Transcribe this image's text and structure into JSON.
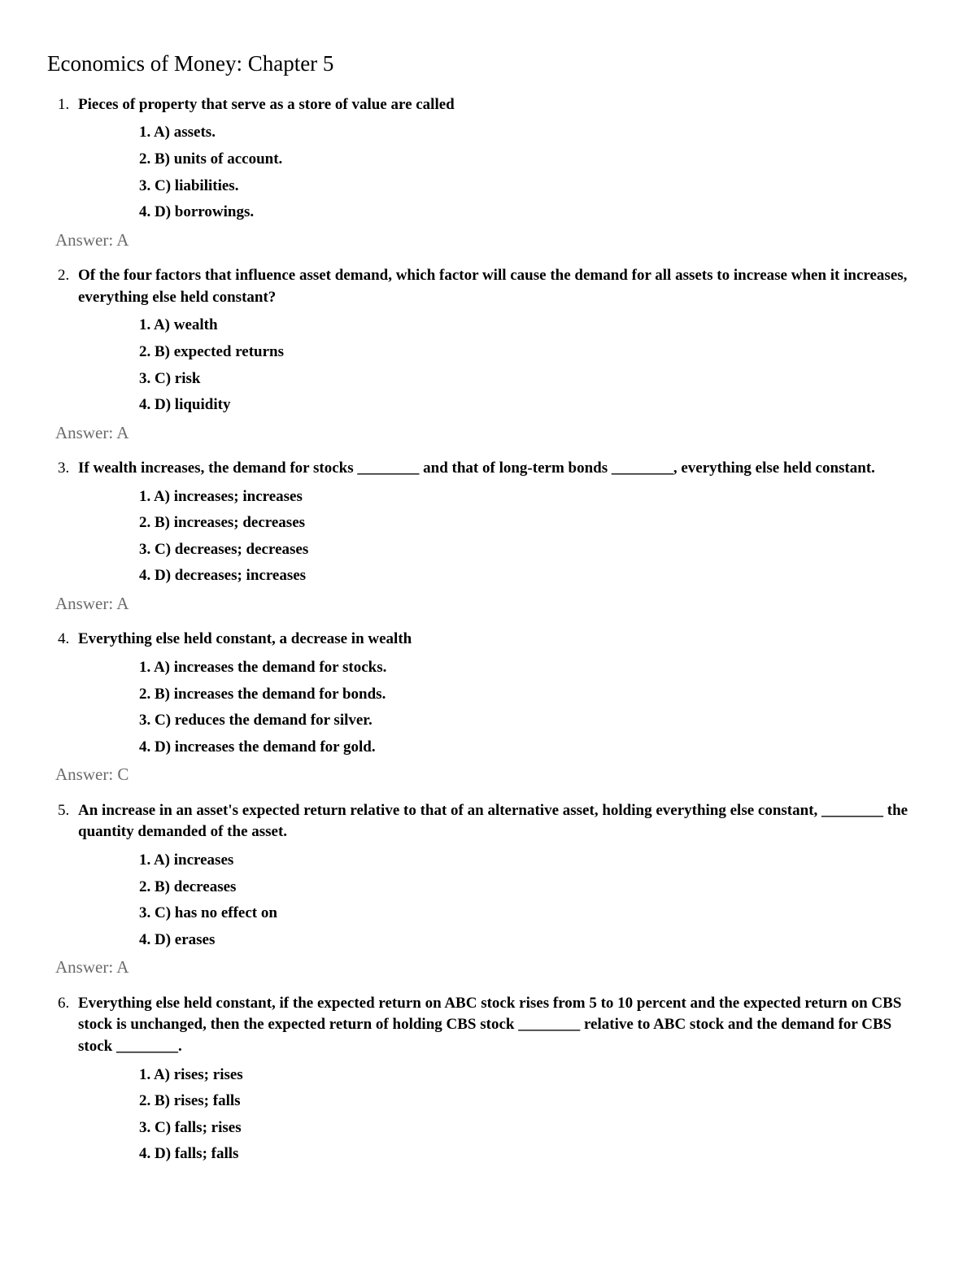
{
  "title": "Economics of Money: Chapter 5",
  "questions": [
    {
      "text": "Pieces of property that serve as a store of value are called",
      "options": [
        "A) assets.",
        "B) units of account.",
        "C) liabilities.",
        "D) borrowings."
      ],
      "answer": "Answer: A"
    },
    {
      "text": "Of the four factors that influence asset demand, which factor will cause the demand for all assets to increase when it increases, everything else held constant?",
      "options": [
        "A) wealth",
        "B) expected returns",
        "C) risk",
        "D) liquidity"
      ],
      "answer": "Answer: A"
    },
    {
      "text": "If wealth increases, the demand for stocks ________ and that of long-term bonds ________, everything else held constant.",
      "options": [
        "A) increases; increases",
        "B) increases; decreases",
        "C) decreases; decreases",
        "D) decreases; increases"
      ],
      "answer": "Answer: A"
    },
    {
      "text": "Everything else held constant, a decrease in wealth",
      "options": [
        "A) increases the demand for stocks.",
        "B) increases the demand for bonds.",
        "C) reduces the demand for silver.",
        "D) increases the demand for gold."
      ],
      "answer": "Answer: C"
    },
    {
      "text": "An increase in an asset's expected return relative to that of an alternative asset, holding everything else constant, ________ the quantity demanded of the asset.",
      "options": [
        "A) increases",
        "B) decreases",
        "C) has no effect on",
        "D) erases"
      ],
      "answer": "Answer: A"
    },
    {
      "text": "Everything else held constant, if the expected return on ABC stock rises from 5 to 10 percent and the expected return on CBS stock is unchanged, then the expected return of holding CBS stock ________ relative to ABC stock and the demand for CBS stock ________.",
      "options": [
        "A) rises; rises",
        "B) rises; falls",
        "C) falls; rises",
        "D) falls; falls"
      ],
      "answer": ""
    }
  ]
}
